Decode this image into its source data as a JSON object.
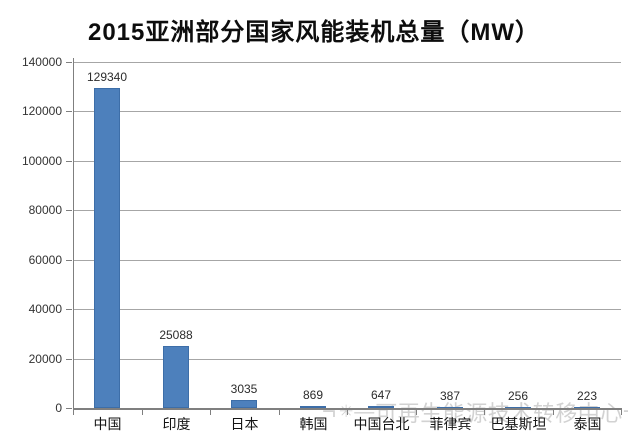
{
  "header": {
    "title": "2015亚洲部分国家风能装机总量（MW）"
  },
  "watermark": {
    "left_line": "¬",
    "logo_icon": "✳",
    "dash": "—",
    "text": "可再生能源技术转移中心",
    "right_line": "¬"
  },
  "colors": {
    "bar_fill": "#4D80BC",
    "bar_edge": "#3D6EA8",
    "grid": "#A6A6A6",
    "axis": "#7F7F7F",
    "axis_text": "#333333",
    "value_text": "#2B2B2B",
    "category_text": "#141414",
    "title_text": "#0D0D0D",
    "watermark_text": "#D2D2D2",
    "background": "#FFFFFF"
  },
  "chart_data": {
    "type": "bar",
    "title": "2015亚洲部分国家风能装机总量（MW）",
    "categories": [
      "中国",
      "印度",
      "日本",
      "韩国",
      "中国台北",
      "菲律宾",
      "巴基斯坦",
      "泰国"
    ],
    "values": [
      129340,
      25088,
      3035,
      869,
      647,
      387,
      256,
      223
    ],
    "value_labels": [
      "129340",
      "25088",
      "3035",
      "869",
      "647",
      "387",
      "256",
      "223"
    ],
    "xlabel": "",
    "ylabel": "",
    "ylim": [
      0,
      140000
    ],
    "ytick_interval": 20000,
    "ytick_labels": [
      "0",
      "20000",
      "40000",
      "60000",
      "80000",
      "100000",
      "120000",
      "140000"
    ],
    "grid": true,
    "legend": false,
    "data_labels": true
  }
}
